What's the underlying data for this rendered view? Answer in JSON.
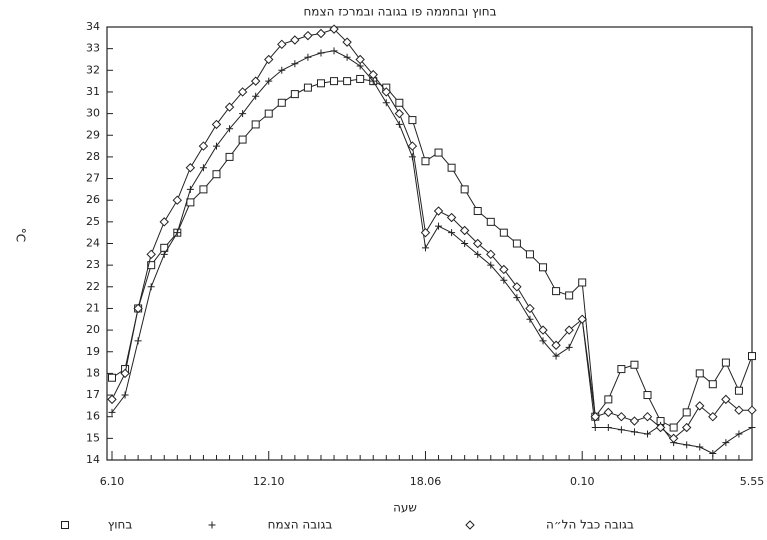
{
  "chart_data": {
    "type": "line",
    "title": "בחוץ ובחממה פו בגובה ובמרכז הצמח",
    "x_label": "שעה",
    "y_label": "°C",
    "categories": [
      "6.10",
      null,
      null,
      null,
      null,
      null,
      null,
      null,
      null,
      null,
      null,
      null,
      "12.10",
      null,
      null,
      null,
      null,
      null,
      null,
      null,
      null,
      null,
      null,
      null,
      "18.06",
      null,
      null,
      null,
      null,
      null,
      null,
      null,
      null,
      null,
      null,
      null,
      "0.10",
      null,
      null,
      null,
      null,
      null,
      null,
      null,
      null,
      null,
      null,
      null,
      null,
      "5.55"
    ],
    "ylim": [
      14,
      34
    ],
    "yticks": [
      14,
      15,
      16,
      17,
      18,
      19,
      20,
      21,
      22,
      23,
      24,
      25,
      26,
      27,
      28,
      29,
      30,
      31,
      32,
      33,
      34
    ],
    "grid": false,
    "legend": "bottom",
    "series": [
      {
        "name": "בחוץ",
        "color": "#222",
        "marker": "square",
        "values": [
          17.8,
          18.2,
          21,
          23,
          23.8,
          24.5,
          25.9,
          26.5,
          27.2,
          28,
          28.8,
          29.5,
          30,
          30.5,
          30.9,
          31.2,
          31.4,
          31.5,
          31.5,
          31.6,
          31.5,
          31.2,
          30.5,
          29.7,
          27.8,
          28.2,
          27.5,
          26.5,
          25.5,
          25,
          24.5,
          24,
          23.5,
          22.9,
          21.8,
          21.6,
          22.2,
          16,
          16.8,
          18.2,
          18.4,
          17,
          15.8,
          15.5,
          16.2,
          18,
          17.5,
          18.5,
          17.2,
          18.8
        ]
      },
      {
        "name": "בגובה הצמח",
        "color": "#222",
        "marker": "plus",
        "values": [
          16.2,
          17,
          19.5,
          22,
          23.5,
          24.5,
          26.5,
          27.5,
          28.5,
          29.3,
          30,
          30.8,
          31.5,
          32,
          32.3,
          32.6,
          32.8,
          32.9,
          32.6,
          32.2,
          31.5,
          30.5,
          29.5,
          28,
          23.8,
          24.8,
          24.5,
          24,
          23.5,
          23,
          22.3,
          21.5,
          20.5,
          19.5,
          18.8,
          19.2,
          20.5,
          15.5,
          15.5,
          15.4,
          15.3,
          15.2,
          15.6,
          14.8,
          14.7,
          14.6,
          14.3,
          14.8,
          15.2,
          15.5
        ]
      },
      {
        "name": "בגובה כבל הל״ה",
        "color": "#222",
        "marker": "diamond",
        "values": [
          16.8,
          18,
          21,
          23.5,
          25,
          26,
          27.5,
          28.5,
          29.5,
          30.3,
          31,
          31.5,
          32.5,
          33.2,
          33.4,
          33.6,
          33.7,
          33.9,
          33.3,
          32.5,
          31.8,
          31,
          30,
          28.5,
          24.5,
          25.5,
          25.2,
          24.6,
          24,
          23.5,
          22.8,
          22,
          21,
          20,
          19.3,
          20,
          20.5,
          16,
          16.2,
          16,
          15.8,
          16,
          15.5,
          15,
          15.5,
          16.5,
          16,
          16.8,
          16.3,
          16.3
        ]
      }
    ]
  }
}
